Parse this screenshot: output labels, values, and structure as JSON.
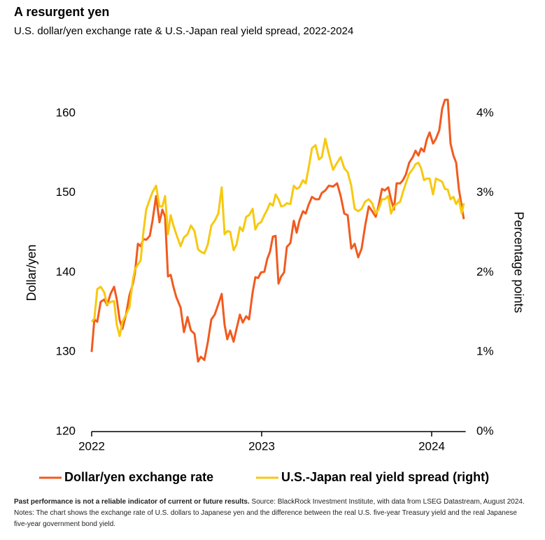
{
  "chart_data": {
    "type": "line",
    "title": "A resurgent yen",
    "subtitle": "U.S. dollar/yen exchange rate & U.S.-Japan real yield spread, 2022-2024",
    "y_label": "Dollar/yen",
    "y2_label": "Percentage points",
    "note_bold": "Past performance is not a reliable indicator of current or future results.",
    "note": "Source: BlackRock Investment Institute, with data from LSEG Datastream, August 2024. Notes: The chart shows the exchange rate of U.S. dollars to Japanese yen and the difference between the real U.S. five-year Treasury yield and the real Japanese five-year government bond yield.",
    "xlim": [
      2022,
      2024.2
    ],
    "xticks": [
      2022,
      2023,
      2024
    ],
    "ylim": [
      120,
      160
    ],
    "yticks": [
      120,
      130,
      140,
      150,
      160
    ],
    "y2lim": [
      0,
      4
    ],
    "y2ticks": [
      {
        "value": 0,
        "label": "0%"
      },
      {
        "value": 1,
        "label": "1%"
      },
      {
        "value": 2,
        "label": "2%"
      },
      {
        "value": 3,
        "label": "3%"
      },
      {
        "value": 4,
        "label": "4%"
      }
    ],
    "grid": false,
    "x": [
      2022,
      2022.016,
      2022.033,
      2022.053,
      2022.074,
      2022.091,
      2022.111,
      2022.132,
      2022.148,
      2022.165,
      2022.181,
      2022.202,
      2022.222,
      2022.243,
      2022.255,
      2022.272,
      2022.288,
      2022.305,
      2022.321,
      2022.342,
      2022.358,
      2022.379,
      2022.399,
      2022.416,
      2022.432,
      2022.449,
      2022.465,
      2022.481,
      2022.498,
      2022.523,
      2022.543,
      2022.564,
      2022.584,
      2022.605,
      2022.626,
      2022.642,
      2022.663,
      2022.683,
      2022.704,
      2022.724,
      2022.745,
      2022.765,
      2022.782,
      2022.798,
      2022.815,
      2022.835,
      2022.852,
      2022.872,
      2022.889,
      2022.909,
      2022.926,
      2022.947,
      2022.963,
      2022.979,
      2022.996,
      2023.016,
      2023.033,
      2023.049,
      2023.066,
      2023.082,
      2023.099,
      2023.115,
      2023.132,
      2023.148,
      2023.169,
      2023.189,
      2023.206,
      2023.222,
      2023.243,
      2023.259,
      2023.276,
      2023.296,
      2023.317,
      2023.337,
      2023.354,
      2023.374,
      2023.395,
      2023.42,
      2023.444,
      2023.465,
      2023.486,
      2023.506,
      2023.527,
      2023.547,
      2023.568,
      2023.588,
      2023.609,
      2023.63,
      2023.65,
      2023.671,
      2023.687,
      2023.708,
      2023.724,
      2023.745,
      2023.761,
      2023.778,
      2023.794,
      2023.815,
      2023.831,
      2023.848,
      2023.868,
      2023.889,
      2023.905,
      2023.922,
      2023.938,
      2023.955,
      2023.971,
      2023.988,
      2024.008,
      2024.025,
      2024.045,
      2024.062,
      2024.078,
      2024.095,
      2024.111,
      2024.128,
      2024.144,
      2024.16,
      2024.177,
      2024.189
    ],
    "series": [
      {
        "name": "Dollar/yen exchange rate",
        "color": "#f25a1f",
        "values": [
          130.0,
          134.1,
          133.8,
          136.3,
          136.6,
          135.9,
          137.3,
          138.2,
          136.6,
          134.0,
          132.9,
          134.7,
          137.1,
          138.6,
          140.0,
          143.6,
          143.3,
          144.2,
          144.1,
          144.6,
          146.5,
          149.6,
          146.3,
          147.9,
          147.0,
          139.5,
          139.7,
          138.2,
          136.9,
          135.6,
          132.5,
          134.4,
          132.7,
          132.3,
          128.8,
          129.4,
          129.0,
          131.2,
          134.1,
          134.7,
          136.0,
          137.3,
          133.4,
          131.6,
          132.7,
          131.3,
          132.9,
          134.7,
          133.7,
          134.5,
          134.1,
          137.5,
          139.4,
          139.3,
          140.0,
          140.1,
          141.7,
          142.6,
          144.5,
          144.6,
          138.6,
          139.5,
          140.0,
          143.2,
          143.7,
          146.5,
          145.0,
          146.5,
          147.7,
          147.4,
          148.5,
          149.5,
          149.2,
          149.2,
          150.0,
          150.3,
          150.9,
          150.8,
          151.2,
          149.6,
          147.4,
          147.2,
          143.0,
          143.6,
          141.9,
          143.0,
          145.9,
          148.3,
          147.7,
          147.0,
          148.3,
          150.5,
          150.3,
          150.7,
          149.2,
          147.9,
          151.2,
          151.2,
          151.6,
          152.3,
          153.8,
          154.5,
          155.3,
          154.7,
          155.6,
          155.2,
          156.7,
          157.6,
          156.2,
          156.8,
          157.9,
          160.6,
          161.7,
          161.7,
          156.2,
          154.7,
          153.8,
          150.5,
          148.3,
          146.7
        ]
      },
      {
        "name": "U.S.-Japan real yield spread (right)",
        "color": "#f7c90f",
        "axis": "y2",
        "values": [
          1.38,
          1.42,
          1.79,
          1.82,
          1.75,
          1.6,
          1.63,
          1.64,
          1.34,
          1.2,
          1.38,
          1.47,
          1.56,
          1.91,
          2.04,
          2.1,
          2.15,
          2.52,
          2.79,
          2.92,
          3.01,
          3.09,
          2.83,
          2.83,
          2.96,
          2.48,
          2.72,
          2.59,
          2.48,
          2.33,
          2.44,
          2.48,
          2.59,
          2.52,
          2.29,
          2.26,
          2.24,
          2.35,
          2.59,
          2.65,
          2.74,
          3.07,
          2.48,
          2.52,
          2.51,
          2.28,
          2.35,
          2.57,
          2.52,
          2.7,
          2.72,
          2.8,
          2.54,
          2.61,
          2.63,
          2.72,
          2.79,
          2.87,
          2.84,
          2.98,
          2.92,
          2.83,
          2.84,
          2.87,
          2.86,
          3.09,
          3.05,
          3.07,
          3.16,
          3.12,
          3.31,
          3.56,
          3.6,
          3.42,
          3.45,
          3.68,
          3.49,
          3.29,
          3.38,
          3.45,
          3.31,
          3.26,
          3.09,
          2.8,
          2.77,
          2.8,
          2.89,
          2.92,
          2.87,
          2.74,
          2.79,
          2.92,
          2.92,
          2.96,
          2.74,
          2.83,
          2.86,
          2.89,
          3.01,
          3.12,
          3.24,
          3.3,
          3.36,
          3.38,
          3.31,
          3.16,
          3.18,
          3.18,
          2.98,
          3.18,
          3.16,
          3.14,
          3.05,
          3.04,
          2.92,
          2.95,
          2.86,
          2.92,
          2.74,
          2.87
        ]
      }
    ]
  }
}
